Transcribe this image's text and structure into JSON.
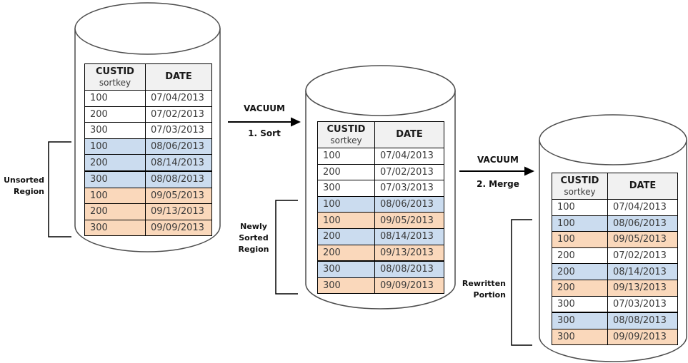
{
  "colors": {
    "row_blue": "#cbdcef",
    "row_orange": "#fad8bb",
    "header_bg": "#f1f1f1",
    "table_border": "#000000",
    "cylinder_stroke": "#4d4d4d",
    "line_color": "#000000",
    "text_color": "#3a3a3a"
  },
  "column_headers": {
    "custid": "CUSTID",
    "custid_sub": "sortkey",
    "date": "DATE"
  },
  "arrows": [
    {
      "title": "VACUUM",
      "step": "1. Sort"
    },
    {
      "title": "VACUUM",
      "step": "2. Merge"
    }
  ],
  "region_labels": {
    "unsorted": [
      "Unsorted",
      "Region"
    ],
    "newly_sorted": [
      "Newly",
      "Sorted",
      "Region"
    ],
    "rewritten": [
      "Rewritten",
      "Portion"
    ]
  },
  "tables": [
    {
      "rows": [
        {
          "custid": "100",
          "date": "07/04/2013",
          "band": "none"
        },
        {
          "custid": "200",
          "date": "07/02/2013",
          "band": "none"
        },
        {
          "custid": "300",
          "date": "07/03/2013",
          "band": "none"
        },
        {
          "custid": "100",
          "date": "08/06/2013",
          "band": "blue"
        },
        {
          "custid": "200",
          "date": "08/14/2013",
          "band": "blue"
        },
        {
          "custid": "300",
          "date": "08/08/2013",
          "band": "blue",
          "thick_top": true
        },
        {
          "custid": "100",
          "date": "09/05/2013",
          "band": "orange"
        },
        {
          "custid": "200",
          "date": "09/13/2013",
          "band": "orange"
        },
        {
          "custid": "300",
          "date": "09/09/2013",
          "band": "orange"
        }
      ]
    },
    {
      "rows": [
        {
          "custid": "100",
          "date": "07/04/2013",
          "band": "none"
        },
        {
          "custid": "200",
          "date": "07/02/2013",
          "band": "none"
        },
        {
          "custid": "300",
          "date": "07/03/2013",
          "band": "none"
        },
        {
          "custid": "100",
          "date": "08/06/2013",
          "band": "blue"
        },
        {
          "custid": "100",
          "date": "09/05/2013",
          "band": "orange"
        },
        {
          "custid": "200",
          "date": "08/14/2013",
          "band": "blue"
        },
        {
          "custid": "200",
          "date": "09/13/2013",
          "band": "orange"
        },
        {
          "custid": "300",
          "date": "08/08/2013",
          "band": "blue",
          "thick_top": true
        },
        {
          "custid": "300",
          "date": "09/09/2013",
          "band": "orange"
        }
      ]
    },
    {
      "rows": [
        {
          "custid": "100",
          "date": "07/04/2013",
          "band": "none"
        },
        {
          "custid": "100",
          "date": "08/06/2013",
          "band": "blue"
        },
        {
          "custid": "100",
          "date": "09/05/2013",
          "band": "orange"
        },
        {
          "custid": "200",
          "date": "07/02/2013",
          "band": "none"
        },
        {
          "custid": "200",
          "date": "08/14/2013",
          "band": "blue"
        },
        {
          "custid": "200",
          "date": "09/13/2013",
          "band": "orange"
        },
        {
          "custid": "300",
          "date": "07/03/2013",
          "band": "none"
        },
        {
          "custid": "300",
          "date": "08/08/2013",
          "band": "blue",
          "thick_top": true
        },
        {
          "custid": "300",
          "date": "09/09/2013",
          "band": "orange"
        }
      ]
    }
  ]
}
